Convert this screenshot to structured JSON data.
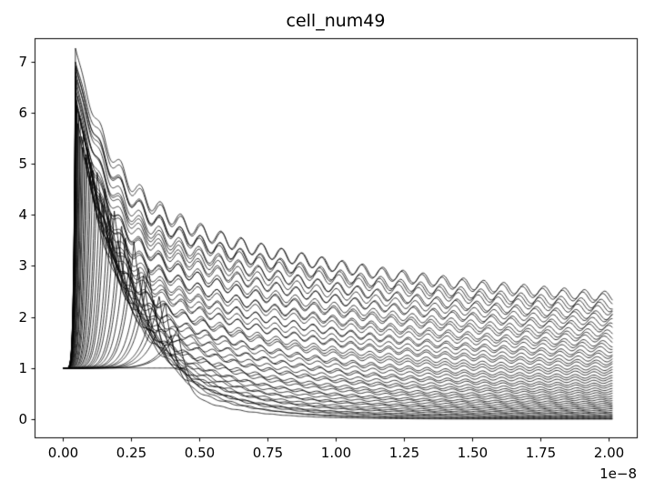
{
  "chart_data": {
    "type": "line",
    "title": "cell_num49",
    "x_offset_label": "1e−8",
    "x_tick_labels": [
      "0.00",
      "0.25",
      "0.50",
      "0.75",
      "1.00",
      "1.25",
      "1.50",
      "1.75",
      "2.00"
    ],
    "x_tick_values": [
      0,
      0.25,
      0.5,
      0.75,
      1.0,
      1.25,
      1.5,
      1.75,
      2.0
    ],
    "y_tick_labels": [
      "0",
      "1",
      "2",
      "3",
      "4",
      "5",
      "6",
      "7"
    ],
    "y_tick_values": [
      0,
      1,
      2,
      3,
      4,
      5,
      6,
      7
    ],
    "xlim": [
      -0.105,
      2.105
    ],
    "ylim": [
      -0.356,
      7.456
    ],
    "x_data_range": [
      0,
      2.02
    ],
    "n_traces": 49,
    "peak_max": 7.1,
    "envelope_end_value": 2.2,
    "line_color": "#000000",
    "frame_color": "#000000",
    "line_width": 0.8,
    "grid": false,
    "legend": "none",
    "model": {
      "start_value": 1.0,
      "rise_exponent": 7,
      "peak": {
        "base": 1.0,
        "scale": 6.1,
        "exp": 0.6,
        "wobble_amp": 0.25,
        "wobble_freq": 2.3
      },
      "peak_time": {
        "base": 0.045,
        "scale": 0.4,
        "exp": 3.0
      },
      "tau": {
        "base": 0.2,
        "scale": 0.9,
        "exp": 1.3,
        "fast_fraction": 0.52,
        "fast_ratio": 0.12
      },
      "floor": {
        "scale": 2.0,
        "exp": 1.4
      },
      "ripple": {
        "amp": 0.04,
        "wavelength_base": 0.062,
        "wavelength_slope": 0.012,
        "fade": 0.1
      }
    }
  }
}
